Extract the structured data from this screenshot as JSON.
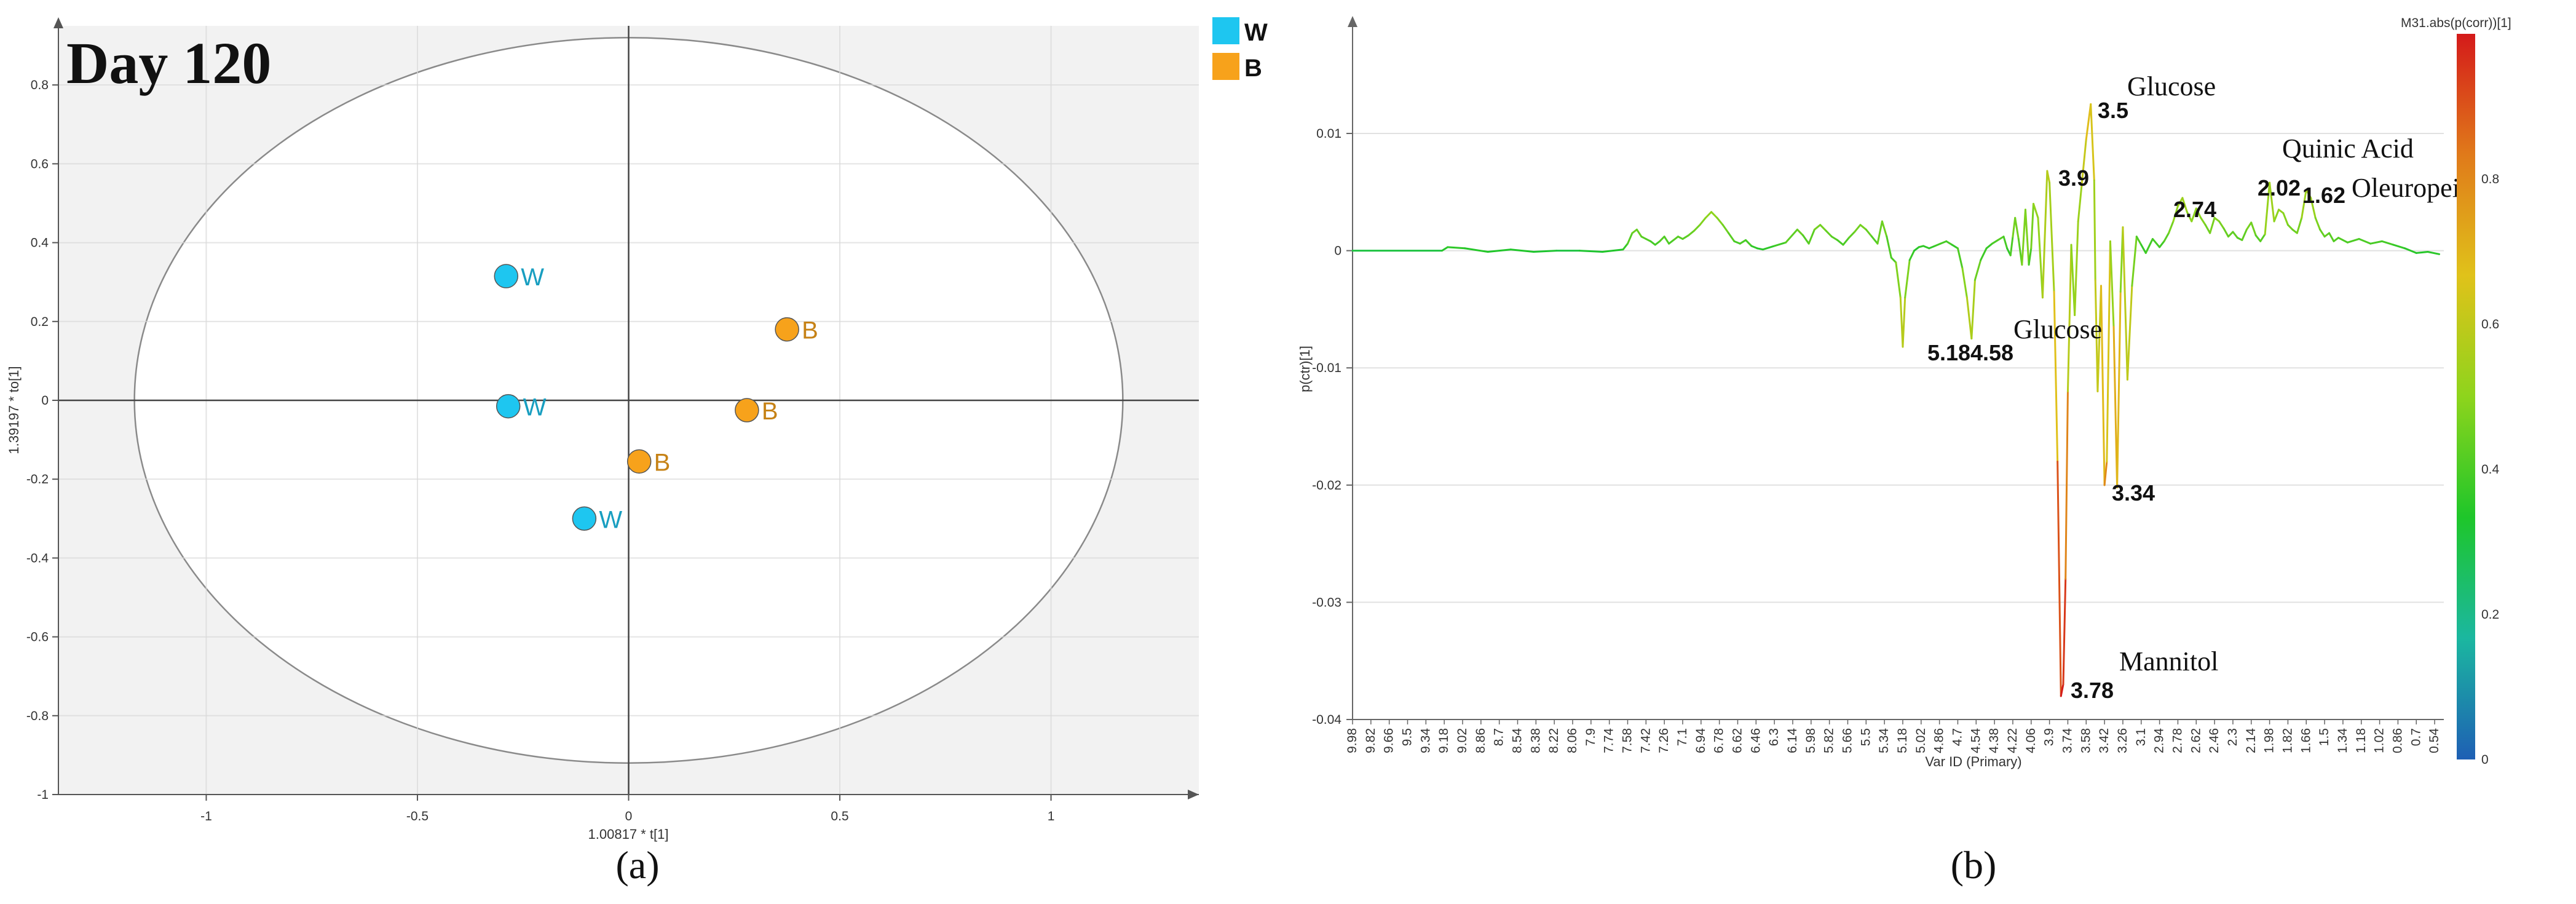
{
  "chart_data": [
    {
      "type": "scatter",
      "title": "Day 120",
      "xlabel": "1.00817 * t[1]",
      "ylabel": "1.39197 * to[1]",
      "xlim": [
        -1.35,
        1.35
      ],
      "ylim": [
        -1.0,
        0.95
      ],
      "x_ticks": [
        "-1",
        "-0.5",
        "0",
        "0.5",
        "1"
      ],
      "y_ticks": [
        "0.8",
        "0.6",
        "0.4",
        "0.2",
        "0",
        "-0.2",
        "-0.4",
        "-0.6",
        "-0.8",
        "-1"
      ],
      "grid": true,
      "ellipse": {
        "center": [
          0,
          0
        ],
        "rx": 1.17,
        "ry": 0.92
      },
      "legend": {
        "position": "right",
        "entries": [
          {
            "label": "W",
            "color": "#1ec6f0"
          },
          {
            "label": "B",
            "color": "#f7a21b"
          }
        ]
      },
      "series": [
        {
          "name": "W",
          "color": "#1ec6f0",
          "points": [
            {
              "x": -0.29,
              "y": 0.315,
              "label": "W"
            },
            {
              "x": -0.285,
              "y": -0.015,
              "label": "W"
            },
            {
              "x": -0.105,
              "y": -0.3,
              "label": "W"
            }
          ]
        },
        {
          "name": "B",
          "color": "#f7a21b",
          "points": [
            {
              "x": 0.375,
              "y": 0.18,
              "label": "B"
            },
            {
              "x": 0.28,
              "y": -0.025,
              "label": "B"
            },
            {
              "x": 0.025,
              "y": -0.155,
              "label": "B"
            }
          ]
        }
      ],
      "caption": "(a)"
    },
    {
      "type": "line",
      "xlabel": "Var ID (Primary)",
      "ylabel": "p(ctr)[1]",
      "ylim": [
        -0.04,
        0.0185
      ],
      "y_ticks": [
        0.01,
        0,
        -0.01,
        -0.02,
        -0.03,
        -0.04
      ],
      "y_tick_labels": [
        "0.01",
        "0",
        "-0.01",
        "-0.02",
        "-0.03",
        "-0.04"
      ],
      "x_ticks": [
        "9.98",
        "9.82",
        "9.66",
        "9.5",
        "9.34",
        "9.18",
        "9.02",
        "8.86",
        "8.7",
        "8.54",
        "8.38",
        "8.22",
        "8.06",
        "7.9",
        "7.74",
        "7.58",
        "7.42",
        "7.26",
        "7.1",
        "6.94",
        "6.78",
        "6.62",
        "6.46",
        "6.3",
        "6.14",
        "5.98",
        "5.82",
        "5.66",
        "5.5",
        "5.34",
        "5.18",
        "5.02",
        "4.86",
        "4.7",
        "4.54",
        "4.38",
        "4.22",
        "4.06",
        "3.9",
        "3.74",
        "3.58",
        "3.42",
        "3.26",
        "3.1",
        "2.94",
        "2.78",
        "2.62",
        "2.46",
        "2.3",
        "2.14",
        "1.98",
        "1.82",
        "1.66",
        "1.5",
        "1.34",
        "1.18",
        "1.02",
        "0.86",
        "0.7",
        "0.54"
      ],
      "x_reversed": true,
      "x_range": [
        9.98,
        0.46
      ],
      "ppm": [
        9.98,
        9.2,
        9.15,
        9.0,
        8.8,
        8.6,
        8.4,
        8.2,
        8.0,
        7.8,
        7.62,
        7.58,
        7.54,
        7.5,
        7.46,
        7.42,
        7.38,
        7.34,
        7.3,
        7.26,
        7.22,
        7.18,
        7.14,
        7.1,
        7.05,
        7.0,
        6.95,
        6.9,
        6.85,
        6.8,
        6.75,
        6.7,
        6.65,
        6.6,
        6.55,
        6.5,
        6.45,
        6.4,
        6.3,
        6.2,
        6.1,
        6.05,
        6.0,
        5.95,
        5.9,
        5.85,
        5.8,
        5.75,
        5.7,
        5.65,
        5.6,
        5.55,
        5.5,
        5.45,
        5.4,
        5.36,
        5.32,
        5.28,
        5.24,
        5.2,
        5.18,
        5.16,
        5.12,
        5.08,
        5.04,
        5.0,
        4.95,
        4.9,
        4.85,
        4.8,
        4.75,
        4.7,
        4.66,
        4.62,
        4.58,
        4.55,
        4.5,
        4.45,
        4.4,
        4.35,
        4.3,
        4.27,
        4.24,
        4.22,
        4.2,
        4.17,
        4.14,
        4.11,
        4.08,
        4.06,
        4.04,
        4.0,
        3.96,
        3.92,
        3.9,
        3.86,
        3.83,
        3.8,
        3.78,
        3.76,
        3.74,
        3.71,
        3.68,
        3.65,
        3.62,
        3.58,
        3.54,
        3.51,
        3.5,
        3.48,
        3.45,
        3.42,
        3.4,
        3.37,
        3.34,
        3.31,
        3.28,
        3.26,
        3.22,
        3.18,
        3.14,
        3.1,
        3.06,
        3.0,
        2.94,
        2.9,
        2.86,
        2.82,
        2.78,
        2.74,
        2.7,
        2.66,
        2.62,
        2.58,
        2.54,
        2.5,
        2.46,
        2.42,
        2.38,
        2.34,
        2.3,
        2.26,
        2.22,
        2.18,
        2.14,
        2.1,
        2.06,
        2.02,
        1.98,
        1.94,
        1.9,
        1.86,
        1.82,
        1.78,
        1.74,
        1.7,
        1.66,
        1.62,
        1.58,
        1.54,
        1.5,
        1.46,
        1.42,
        1.38,
        1.34,
        1.3,
        1.2,
        1.1,
        1.0,
        0.9,
        0.8,
        0.7,
        0.6,
        0.5
      ],
      "values": [
        0,
        0,
        0.0003,
        0.0002,
        -0.0001,
        0.0001,
        -0.0001,
        0,
        0,
        -0.0001,
        0.0001,
        0.0006,
        0.0015,
        0.0018,
        0.0012,
        0.001,
        0.0008,
        0.0005,
        0.0008,
        0.0012,
        0.0006,
        0.0009,
        0.0012,
        0.001,
        0.0013,
        0.0017,
        0.0022,
        0.0028,
        0.0033,
        0.0028,
        0.0022,
        0.0015,
        0.0008,
        0.0006,
        0.0009,
        0.0004,
        0.0002,
        0.0001,
        0.0004,
        0.0007,
        0.0018,
        0.0013,
        0.0006,
        0.0018,
        0.0022,
        0.0017,
        0.0012,
        0.0009,
        0.0005,
        0.0011,
        0.0016,
        0.0022,
        0.0018,
        0.0012,
        0.0006,
        0.0025,
        0.0012,
        -0.0006,
        -0.001,
        -0.004,
        -0.0082,
        -0.004,
        -0.0008,
        0,
        0.0003,
        0.0004,
        0.0002,
        0.0004,
        0.0006,
        0.0008,
        0.0005,
        0.0002,
        -0.0015,
        -0.004,
        -0.0075,
        -0.0025,
        -0.0008,
        0.0002,
        0.0006,
        0.0009,
        0.0012,
        0.0002,
        -0.0004,
        0.0012,
        0.0028,
        0.001,
        -0.0012,
        0.0035,
        -0.0012,
        0.0002,
        0.004,
        0.0028,
        -0.004,
        0.0068,
        0.0058,
        -0.0035,
        -0.018,
        -0.038,
        -0.037,
        -0.028,
        -0.012,
        0.0005,
        -0.0055,
        0.0025,
        0.0055,
        0.0095,
        0.0125,
        0.006,
        -0.0025,
        -0.012,
        -0.003,
        -0.02,
        -0.018,
        0.0008,
        -0.0065,
        -0.0202,
        -0.0035,
        0.002,
        -0.011,
        -0.003,
        0.0012,
        0.0005,
        -0.0002,
        0.001,
        0.0003,
        0.0008,
        0.0015,
        0.0025,
        0.0038,
        0.0045,
        0.0033,
        0.0025,
        0.0036,
        0.0028,
        0.0022,
        0.0015,
        0.0028,
        0.0025,
        0.0019,
        0.0012,
        0.0016,
        0.0011,
        0.0009,
        0.0018,
        0.0024,
        0.0013,
        0.0008,
        0.0014,
        0.0058,
        0.0025,
        0.0035,
        0.0032,
        0.0022,
        0.0018,
        0.0015,
        0.0028,
        0.0052,
        0.0045,
        0.0028,
        0.0018,
        0.0012,
        0.0015,
        0.0008,
        0.0011,
        0.0009,
        0.0007,
        0.001,
        0.0006,
        0.0008,
        0.0005,
        0.0002,
        -0.0002,
        -0.0001,
        -0.0003,
        -0.0002
      ],
      "corr_range": [
        0,
        1
      ],
      "colorbar": {
        "title": "M31.abs(p(corr))[1]",
        "ticks": [
          0,
          0.2,
          0.4,
          0.6,
          0.8
        ],
        "tick_labels": [
          "0",
          "0.2",
          "0.4",
          "0.6",
          "0.8"
        ],
        "colors": [
          "#1e5fb4",
          "#1bb7a0",
          "#1ec62a",
          "#8ed41c",
          "#e0c21a",
          "#e07a1a",
          "#d41a1a"
        ]
      },
      "annotations": [
        {
          "text": "Glucose",
          "style": "serif"
        },
        {
          "text": "3.5",
          "style": "bold"
        },
        {
          "text": "3.9",
          "style": "bold"
        },
        {
          "text": "2.74",
          "style": "bold"
        },
        {
          "text": "Quinic Acid",
          "style": "serif"
        },
        {
          "text": "2.02",
          "style": "bold"
        },
        {
          "text": "1.62",
          "style": "bold"
        },
        {
          "text": "Oleuropein",
          "style": "serif"
        },
        {
          "text": "5.18",
          "style": "bold"
        },
        {
          "text": "4.58",
          "style": "bold"
        },
        {
          "text": "Glucose",
          "style": "serif"
        },
        {
          "text": "3.34",
          "style": "bold"
        },
        {
          "text": "Mannitol",
          "style": "serif"
        },
        {
          "text": "3.78",
          "style": "bold"
        }
      ],
      "caption": "(b)"
    }
  ]
}
